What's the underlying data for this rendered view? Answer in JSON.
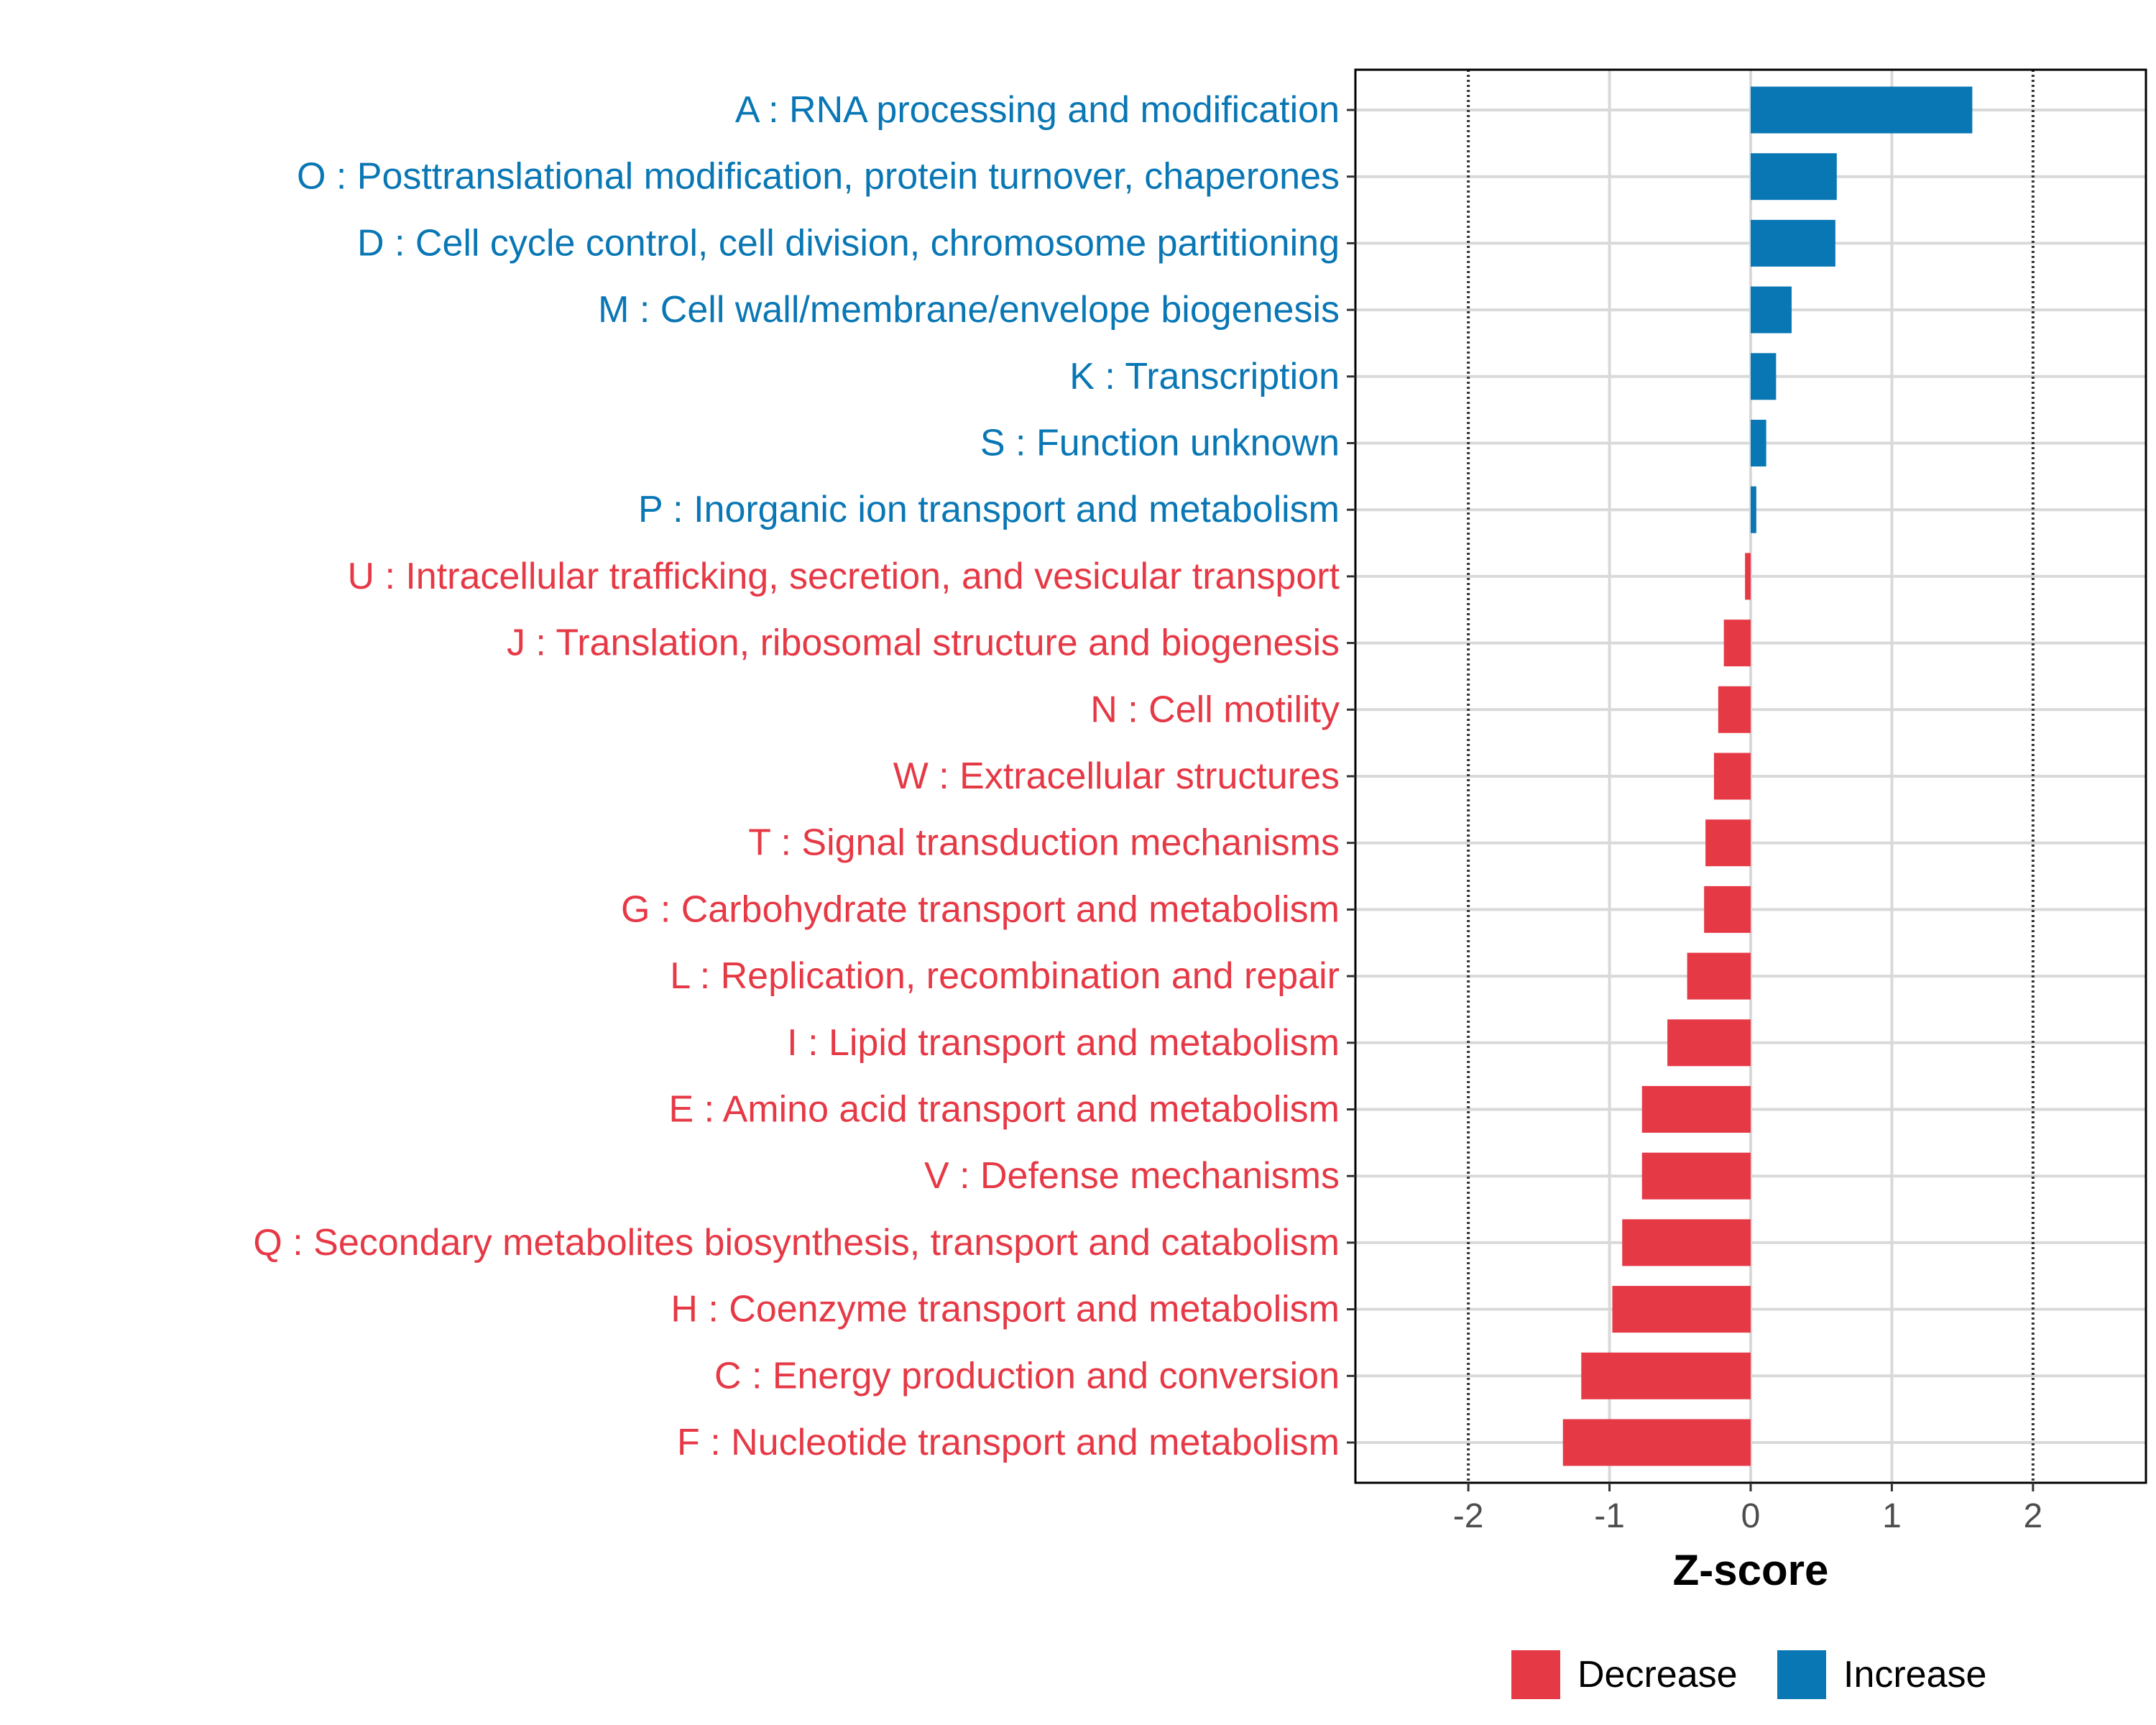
{
  "chart_data": {
    "type": "bar",
    "orientation": "horizontal",
    "title": "",
    "xlabel": "Z-score",
    "ylabel": "",
    "xlim": [
      -2.8,
      2.8
    ],
    "x_ticks": [
      -2,
      -1,
      0,
      1,
      2
    ],
    "x_tick_labels": [
      "-2",
      "-1",
      "0",
      "1",
      "2"
    ],
    "reference_lines": [
      -2,
      2
    ],
    "grid": true,
    "legend_position": "bottom",
    "colors": {
      "Decrease": "#e63946",
      "Increase": "#0a77b5"
    },
    "legend": [
      {
        "name": "Decrease",
        "color": "#e63946"
      },
      {
        "name": "Increase",
        "color": "#0a77b5"
      }
    ],
    "categories": [
      "A : RNA processing and modification",
      "O : Posttranslational modification, protein turnover, chaperones",
      "D : Cell cycle control, cell division, chromosome partitioning",
      "M : Cell wall/membrane/envelope biogenesis",
      "K : Transcription",
      "S : Function unknown",
      "P : Inorganic ion transport and metabolism",
      "U : Intracellular trafficking, secretion, and vesicular transport",
      "J : Translation, ribosomal structure and biogenesis",
      "N : Cell motility",
      "W : Extracellular structures",
      "T : Signal transduction mechanisms",
      "G : Carbohydrate transport and metabolism",
      "L : Replication, recombination and repair",
      "I : Lipid transport and metabolism",
      "E : Amino acid transport and metabolism",
      "V : Defense mechanisms",
      "Q : Secondary metabolites biosynthesis, transport and catabolism",
      "H : Coenzyme transport and metabolism",
      "C : Energy production and conversion",
      "F : Nucleotide transport and metabolism"
    ],
    "values": [
      1.57,
      0.61,
      0.6,
      0.29,
      0.18,
      0.11,
      0.04,
      -0.04,
      -0.19,
      -0.23,
      -0.26,
      -0.32,
      -0.33,
      -0.45,
      -0.59,
      -0.77,
      -0.77,
      -0.91,
      -0.98,
      -1.2,
      -1.33
    ],
    "groups": [
      "Increase",
      "Increase",
      "Increase",
      "Increase",
      "Increase",
      "Increase",
      "Increase",
      "Decrease",
      "Decrease",
      "Decrease",
      "Decrease",
      "Decrease",
      "Decrease",
      "Decrease",
      "Decrease",
      "Decrease",
      "Decrease",
      "Decrease",
      "Decrease",
      "Decrease",
      "Decrease"
    ]
  }
}
